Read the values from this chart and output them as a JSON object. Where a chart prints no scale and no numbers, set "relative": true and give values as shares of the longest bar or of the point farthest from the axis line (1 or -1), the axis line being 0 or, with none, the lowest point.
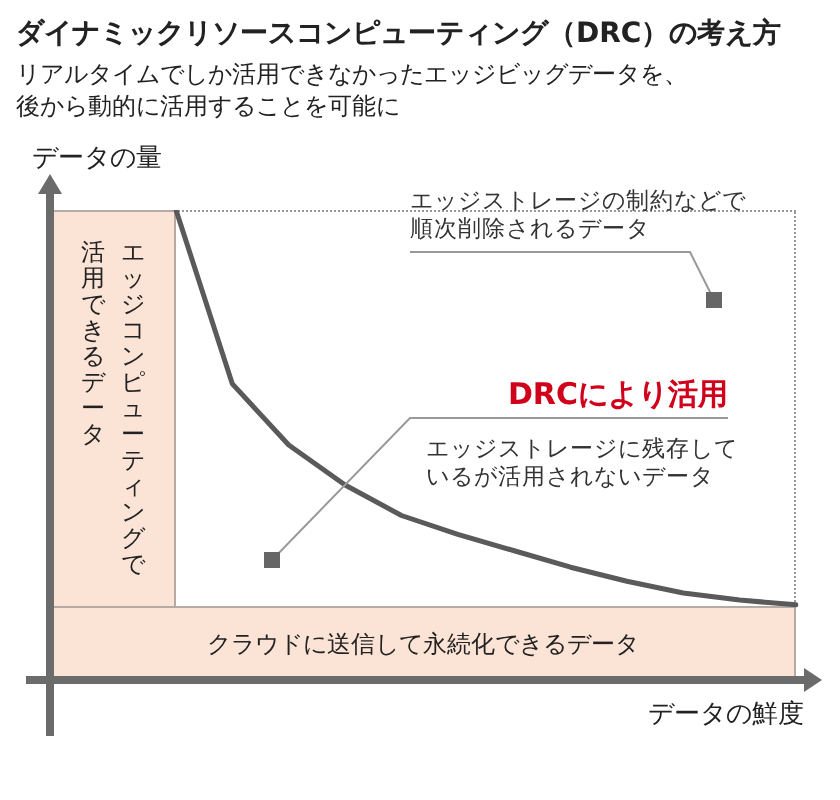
{
  "chart_data": {
    "type": "line",
    "title": "ダイナミックリソースコンピューティング（DRC）の考え方",
    "subtitle": "リアルタイムでしか活用できなかったエッジビッグデータを、後から動的に活用することを可能に",
    "xlabel": "データの鮮度",
    "ylabel": "データの量",
    "relative": true,
    "marker": "none",
    "line_style": "solid",
    "categories": [
      null,
      null,
      null,
      null,
      null,
      null,
      null,
      null,
      null,
      null,
      null,
      null
    ],
    "series": [
      {
        "color": "#5a5a5a",
        "values": [
          1.0,
          0.63,
          0.5,
          0.415,
          0.35,
          0.31,
          0.275,
          0.24,
          0.21,
          0.185,
          0.17,
          0.16
        ]
      }
    ],
    "annotations": [
      "エッジストレージの制約などで順次削除されるデータ",
      "DRCにより活用",
      "エッジストレージに残存しているが活用されないデータ",
      "クラウドに送信して永続化できるデータ",
      "エッジコンピューティングで活用できるデータ"
    ]
  }
}
